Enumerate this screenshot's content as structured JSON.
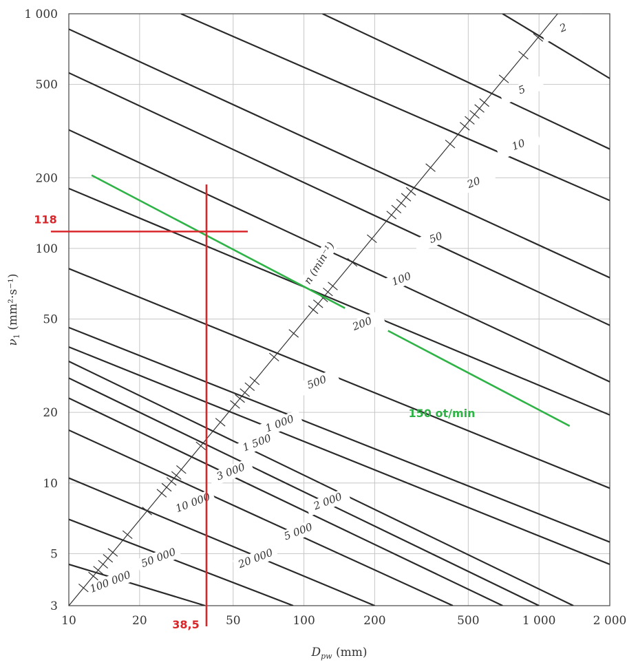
{
  "chart_data": {
    "type": "line",
    "x_axis": {
      "label_main": "D",
      "label_sub": "pw",
      "label_unit": " (mm)",
      "scale": "log",
      "range": [
        10,
        2000
      ],
      "ticks": [
        10,
        20,
        50,
        100,
        200,
        500,
        1000,
        2000
      ],
      "tick_labels": [
        "10",
        "20",
        "50",
        "100",
        "200",
        "500",
        "1 000",
        "2 000"
      ]
    },
    "y_axis": {
      "label_main": "ν",
      "label_sub": "1",
      "label_unit": " (mm²·s⁻¹)",
      "scale": "log",
      "range": [
        3,
        1000
      ],
      "ticks": [
        3,
        5,
        10,
        20,
        50,
        100,
        200,
        500,
        1000
      ],
      "tick_labels": [
        "3",
        "5",
        "10",
        "20",
        "50",
        "100",
        "200",
        "500",
        "1 000"
      ]
    },
    "grid": true,
    "speed_axis_label": "n (min⁻¹)",
    "speed_curves": [
      {
        "label": "2",
        "x": [
          700,
          2000
        ],
        "y": [
          1000,
          530
        ]
      },
      {
        "label": "5",
        "x": [
          120,
          2000
        ],
        "y": [
          1000,
          265
        ]
      },
      {
        "label": "10",
        "x": [
          30,
          2000
        ],
        "y": [
          1000,
          160
        ]
      },
      {
        "label": "20",
        "x": [
          10,
          2000
        ],
        "y": [
          860,
          75
        ]
      },
      {
        "label": "50",
        "x": [
          10,
          2000
        ],
        "y": [
          560,
          47
        ]
      },
      {
        "label": "100",
        "x": [
          10,
          2000
        ],
        "y": [
          320,
          27
        ]
      },
      {
        "label": "200",
        "x": [
          10,
          2000
        ],
        "y": [
          180,
          19.5
        ]
      },
      {
        "label": "500",
        "x": [
          10,
          2000
        ],
        "y": [
          82,
          9.5
        ]
      },
      {
        "label": "1 000",
        "x": [
          10,
          2000
        ],
        "y": [
          46,
          5.6
        ]
      },
      {
        "label": "1 500",
        "x": [
          10,
          2000
        ],
        "y": [
          38,
          4.5
        ]
      },
      {
        "label": "2 000",
        "x": [
          10,
          1400
        ],
        "y": [
          33,
          3
        ]
      },
      {
        "label": "3 000",
        "x": [
          10,
          1000
        ],
        "y": [
          28,
          3
        ]
      },
      {
        "label": "5 000",
        "x": [
          10,
          700
        ],
        "y": [
          23,
          3
        ]
      },
      {
        "label": "10 000",
        "x": [
          10,
          430
        ],
        "y": [
          16.8,
          3
        ]
      },
      {
        "label": "20 000",
        "x": [
          10,
          200
        ],
        "y": [
          10.5,
          3
        ]
      },
      {
        "label": "50 000",
        "x": [
          10,
          90
        ],
        "y": [
          7,
          3
        ]
      },
      {
        "label": "100 000",
        "x": [
          10,
          38
        ],
        "y": [
          4.5,
          3
        ]
      }
    ],
    "speed_axis_line": {
      "x": [
        10,
        1200
      ],
      "y": [
        3,
        1000
      ]
    },
    "annotations": {
      "operating_curve": {
        "label": "150 ot/min",
        "x": [
          12.5,
          1350
        ],
        "y": [
          205,
          17.5
        ],
        "color": "#2fb347"
      },
      "crosshair": {
        "x": 38.5,
        "y": 118,
        "x_label": "38,5",
        "y_label": "118",
        "color": "#d9262b"
      }
    }
  }
}
